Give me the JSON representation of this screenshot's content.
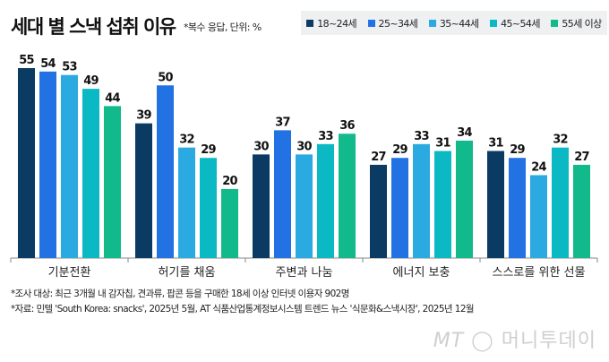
{
  "title": "세대 별 스낵 섭취 이유",
  "subtitle": "*복수 응답, 단위: %",
  "notes": [
    "*조사 대상: 최근 3개월 내 감자칩, 견과류, 팝콘 등을 구매한 18세 이상 인터넷 이용자 902명",
    "*자료: 민텔 'South Korea: snacks', 2025년 5월, AT 식품산업통계정보시스템 트렌드 뉴스 '식문화&스낵시장', 2025년 12월"
  ],
  "watermark": "MT 머니투데이",
  "chart_data": {
    "type": "bar",
    "categories": [
      "기분전환",
      "허기를 채움",
      "주변과 나눔",
      "에너지 보충",
      "스스로를 위한 선물"
    ],
    "series": [
      {
        "name": "18~24세",
        "color": "#0b3a63",
        "values": [
          55,
          39,
          30,
          27,
          31
        ]
      },
      {
        "name": "25~34세",
        "color": "#2372e4",
        "values": [
          54,
          50,
          37,
          29,
          29
        ]
      },
      {
        "name": "35~44세",
        "color": "#2ba9e1",
        "values": [
          53,
          32,
          30,
          33,
          24
        ]
      },
      {
        "name": "45~54세",
        "color": "#0bb9c4",
        "values": [
          49,
          29,
          33,
          31,
          32
        ]
      },
      {
        "name": "55세 이상",
        "color": "#12b98a",
        "values": [
          44,
          20,
          36,
          34,
          27
        ]
      }
    ],
    "ylim": [
      0,
      55
    ],
    "legend": "top-right",
    "grid": false,
    "data_labels": true
  }
}
